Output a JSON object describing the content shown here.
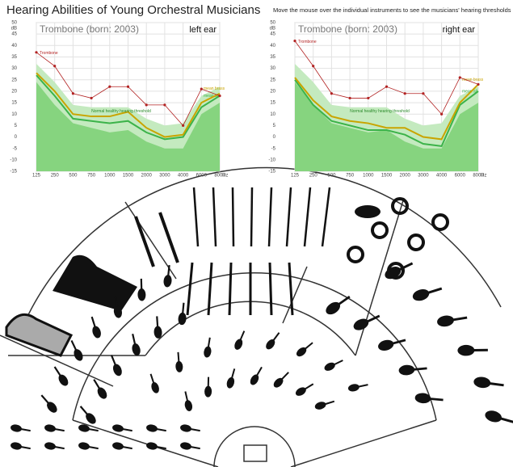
{
  "title": "Hearing Abilities of Young Orchestral Musicians",
  "instruction": "Move the mouse over the individual instruments to see the musicians' hearing thresholds",
  "chart_data": [
    {
      "type": "line",
      "subtitle": "Trombone (born: 2003)",
      "panel_label": "left ear",
      "annotation": "Normal healthy hearing threshold",
      "y_label": "dB",
      "x_label": "Hz",
      "categories": [
        "125",
        "250",
        "500",
        "750",
        "1000",
        "1500",
        "2000",
        "3000",
        "4000",
        "6000",
        "8000"
      ],
      "ylim": [
        -15,
        50
      ],
      "yticks": [
        -15,
        -10,
        -5,
        0,
        5,
        10,
        15,
        20,
        25,
        30,
        35,
        40,
        45,
        50
      ],
      "grid": true,
      "areas": [
        {
          "color": "#c4eabf",
          "values": [
            32,
            24,
            14,
            13,
            13,
            13,
            8,
            5,
            6,
            18,
            22
          ]
        },
        {
          "color": "#86d47f",
          "values": [
            24,
            14,
            6,
            4,
            2,
            3,
            -2,
            -5,
            -5,
            10,
            15
          ]
        }
      ],
      "series": [
        {
          "name": "Trombone",
          "color": "#b22222",
          "values": [
            37,
            31,
            19,
            17,
            22,
            22,
            14,
            14,
            5,
            21,
            18
          ]
        },
        {
          "name": "mean brass",
          "color": "#c9a400",
          "values": [
            28,
            20,
            10,
            9,
            9,
            11,
            4,
            0,
            1,
            15,
            19
          ]
        },
        {
          "name": "mean all",
          "color": "#3cb34a",
          "values": [
            27,
            18,
            8,
            7,
            6,
            7,
            2,
            -1,
            0,
            13,
            18
          ]
        }
      ]
    },
    {
      "type": "line",
      "subtitle": "Trombone (born: 2003)",
      "panel_label": "right ear",
      "annotation": "Normal healthy hearing threshold",
      "y_label": "dB",
      "x_label": "Hz",
      "categories": [
        "125",
        "250",
        "500",
        "750",
        "1000",
        "1500",
        "2000",
        "3000",
        "4000",
        "6000",
        "8000"
      ],
      "ylim": [
        -15,
        50
      ],
      "yticks": [
        -15,
        -10,
        -5,
        0,
        5,
        10,
        15,
        20,
        25,
        30,
        35,
        40,
        45,
        50
      ],
      "grid": true,
      "areas": [
        {
          "color": "#c4eabf",
          "values": [
            32,
            24,
            14,
            13,
            13,
            13,
            8,
            5,
            6,
            18,
            22
          ]
        },
        {
          "color": "#86d47f",
          "values": [
            24,
            14,
            6,
            4,
            2,
            3,
            -2,
            -5,
            -5,
            10,
            15
          ]
        }
      ],
      "series": [
        {
          "name": "Trombone",
          "color": "#b22222",
          "values": [
            42,
            31,
            19,
            17,
            17,
            22,
            19,
            19,
            10,
            26,
            23
          ]
        },
        {
          "name": "mean brass",
          "color": "#c9a400",
          "values": [
            26,
            16,
            9,
            7,
            6,
            4,
            4,
            0,
            -1,
            15,
            23
          ]
        },
        {
          "name": "mean all",
          "color": "#3cb34a",
          "values": [
            25,
            14,
            7,
            5,
            3,
            3,
            1,
            -3,
            -4,
            14,
            20
          ]
        }
      ]
    }
  ]
}
